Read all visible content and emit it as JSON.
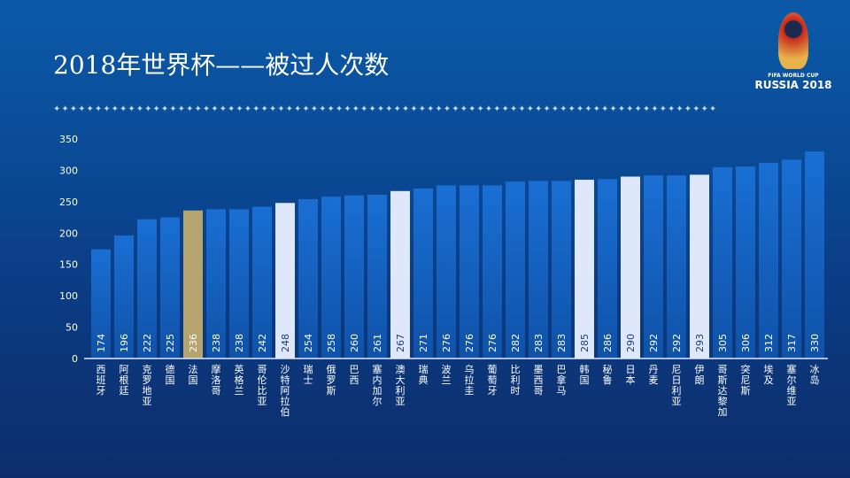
{
  "header": {
    "title": "2018年世界杯——被过人次数",
    "divider": "✦✦✦✦✦✦✦✦✦✦✦✦✦✦✦✦✦✦✦✦✦✦✦✦✦✦✦✦✦✦✦✦✦✦✦✦✦✦✦✦✦✦✦✦✦✦✦✦✦✦✦✦✦✦✦✦✦✦✦✦✦✦✦✦✦✦✦✦✦✦✦✦✦✦✦✦✦✦✦✦"
  },
  "logo": {
    "line1": "FIFA WORLD CUP",
    "line2": "RUSSIA 2018"
  },
  "colors": {
    "default": "#1565c8",
    "highlight": "#dfe7fb",
    "gold": "#b5a46e"
  },
  "chart_data": {
    "type": "bar",
    "title": "2018年世界杯——被过人次数",
    "xlabel": "",
    "ylabel": "",
    "ylim": [
      0,
      350
    ],
    "yticks": [
      0,
      50,
      100,
      150,
      200,
      250,
      300,
      350
    ],
    "grid": false,
    "categories": [
      "西班牙",
      "阿根廷",
      "克罗地亚",
      "德国",
      "法国",
      "摩洛哥",
      "英格兰",
      "哥伦比亚",
      "沙特阿拉伯",
      "瑞士",
      "俄罗斯",
      "巴西",
      "塞内加尔",
      "澳大利亚",
      "瑞典",
      "波兰",
      "乌拉圭",
      "葡萄牙",
      "比利时",
      "墨西哥",
      "巴拿马",
      "韩国",
      "秘鲁",
      "日本",
      "丹麦",
      "尼日利亚",
      "伊朗",
      "哥斯达黎加",
      "突尼斯",
      "埃及",
      "塞尔维亚",
      "冰岛"
    ],
    "values": [
      174,
      196,
      222,
      225,
      236,
      238,
      238,
      242,
      248,
      254,
      258,
      260,
      261,
      267,
      271,
      276,
      276,
      276,
      282,
      283,
      283,
      285,
      286,
      290,
      292,
      292,
      293,
      305,
      306,
      312,
      317,
      330
    ],
    "highlight": [
      "none",
      "none",
      "none",
      "none",
      "gold",
      "none",
      "none",
      "none",
      "light",
      "none",
      "none",
      "none",
      "none",
      "light",
      "none",
      "none",
      "none",
      "none",
      "none",
      "none",
      "none",
      "light",
      "none",
      "light",
      "none",
      "none",
      "light",
      "none",
      "none",
      "none",
      "none",
      "none"
    ]
  }
}
